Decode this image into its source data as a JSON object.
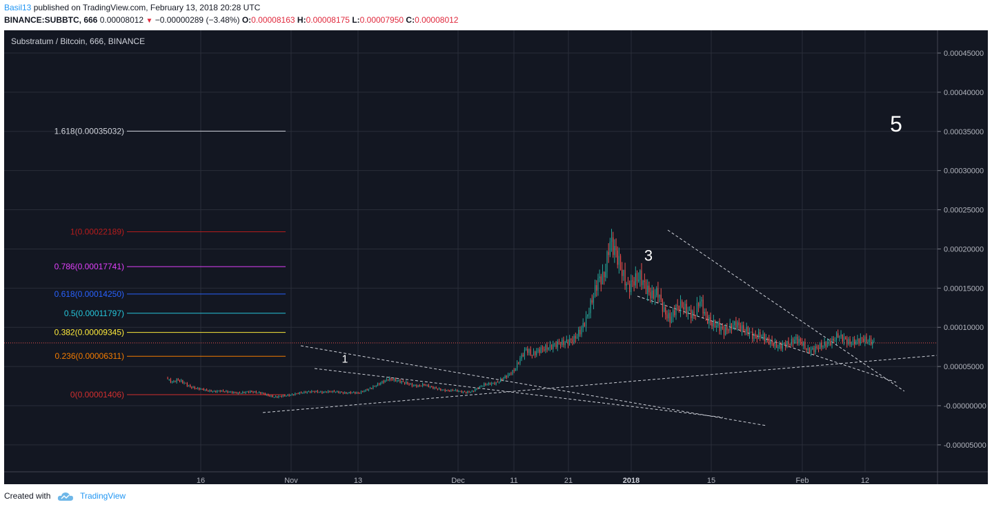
{
  "header": {
    "user": "Basil13",
    "published_text": "published on TradingView.com, February 13, 2018 20:28 UTC",
    "symbol": "BINANCE:SUBBTC, 666",
    "last": "0.00008012",
    "change": "−0.00000289 (−3.48%)",
    "o_label": "O:",
    "o_value": "0.00008163",
    "h_label": "H:",
    "h_value": "0.00008175",
    "l_label": "L:",
    "l_value": "0.00007950",
    "c_label": "C:",
    "c_value": "0.00008012"
  },
  "footer": {
    "created_with": "Created with",
    "brand": "TradingView"
  },
  "colors": {
    "background": "#131722",
    "grid": "#2a2e39",
    "up": "#26a69a",
    "down": "#ef5350",
    "text": "#b2b5be"
  },
  "chart_data": {
    "type": "candlestick",
    "title": "Substratum / Bitcoin, 666, BINANCE",
    "ylim": [
      -8e-05,
      0.00048
    ],
    "y_ticks": [
      {
        "value": 0.00045,
        "label": "0.00045000"
      },
      {
        "value": 0.0004,
        "label": "0.00040000"
      },
      {
        "value": 0.00035,
        "label": "0.00035000"
      },
      {
        "value": 0.0003,
        "label": "0.00030000"
      },
      {
        "value": 0.00025,
        "label": "0.00025000"
      },
      {
        "value": 0.0002,
        "label": "0.00020000"
      },
      {
        "value": 0.00015,
        "label": "0.00015000"
      },
      {
        "value": 0.0001,
        "label": "0.00010000"
      },
      {
        "value": 5e-05,
        "label": "0.00005000"
      },
      {
        "value": 0.0,
        "label": "-0.00000000"
      },
      {
        "value": -5e-05,
        "label": "-0.00005000"
      }
    ],
    "x_ticks": [
      {
        "label": "16",
        "bold": false
      },
      {
        "label": "Nov",
        "bold": false
      },
      {
        "label": "13",
        "bold": false
      },
      {
        "label": "Dec",
        "bold": false
      },
      {
        "label": "11",
        "bold": false
      },
      {
        "label": "21",
        "bold": false
      },
      {
        "label": "2018",
        "bold": true
      },
      {
        "label": "15",
        "bold": false
      },
      {
        "label": "Feb",
        "bold": false
      },
      {
        "label": "12",
        "bold": false
      }
    ],
    "current_price": 8.012e-05,
    "fib_levels": [
      {
        "label": "1.618(0.00035032)",
        "value": 0.00035032,
        "color": "#d1d4dc"
      },
      {
        "label": "1(0.00022189)",
        "value": 0.00022189,
        "color": "#b71c1c"
      },
      {
        "label": "0.786(0.00017741)",
        "value": 0.00017741,
        "color": "#e040fb"
      },
      {
        "label": "0.618(0.00014250)",
        "value": 0.0001425,
        "color": "#2962ff"
      },
      {
        "label": "0.5(0.00011797)",
        "value": 0.00011797,
        "color": "#26c6da"
      },
      {
        "label": "0.382(0.00009345)",
        "value": 9.345e-05,
        "color": "#ffeb3b"
      },
      {
        "label": "0.236(0.00006311)",
        "value": 6.311e-05,
        "color": "#f57c00"
      },
      {
        "label": "0(0.00001406)",
        "value": 1.406e-05,
        "color": "#d32f2f"
      }
    ],
    "wave_labels": [
      {
        "label": "1",
        "value": 5.5e-05
      },
      {
        "label": "3",
        "value": 0.000185
      },
      {
        "label": "5",
        "value": 0.00035
      }
    ],
    "price_path": [
      3.5e-05,
      3e-05,
      3.3e-05,
      2.9e-05,
      2.4e-05,
      2.2e-05,
      2.1e-05,
      1.9e-05,
      1.8e-05,
      1.9e-05,
      1.8e-05,
      1.7e-05,
      1.6e-05,
      1.7e-05,
      1.8e-05,
      1.7e-05,
      1.6e-05,
      1.3e-05,
      1.1e-05,
      1.2e-05,
      1.3e-05,
      1.4e-05,
      1.6e-05,
      1.7e-05,
      1.8e-05,
      1.8e-05,
      1.7e-05,
      1.8e-05,
      1.8e-05,
      1.7e-05,
      1.6e-05,
      1.7e-05,
      1.6e-05,
      1.9e-05,
      2.2e-05,
      2.6e-05,
      3e-05,
      3.4e-05,
      3.3e-05,
      3.1e-05,
      2.9e-05,
      2.6e-05,
      2.5e-05,
      2.7e-05,
      2.4e-05,
      2.2e-05,
      2e-05,
      1.9e-05,
      2e-05,
      1.8e-05,
      1.7e-05,
      1.8e-05,
      2.3e-05,
      2.7e-05,
      2.8e-05,
      2.9e-05,
      3.4e-05,
      3.9e-05,
      4.5e-05,
      6e-05,
      7.2e-05,
      6.5e-05,
      7e-05,
      7.3e-05,
      7.5e-05,
      7.8e-05,
      8e-05,
      8.2e-05,
      8.5e-05,
      9.5e-05,
      0.00011,
      0.000135,
      0.00016,
      0.000165,
      0.00021,
      0.000195,
      0.00017,
      0.00015,
      0.00016,
      0.000165,
      0.00015,
      0.00014,
      0.000145,
      0.00012,
      0.00011,
      0.000125,
      0.000128,
      0.00012,
      0.000115,
      0.000135,
      0.000112,
      0.000105,
      0.000102,
      9.5e-05,
      0.0001,
      0.000105,
      9.8e-05,
      9.5e-05,
      8.8e-05,
      9e-05,
      8.5e-05,
      8e-05,
      7.5e-05,
      7.8e-05,
      8e-05,
      8.5e-05,
      8e-05,
      7e-05,
      7.2e-05,
      7.6e-05,
      7.9e-05,
      8.2e-05,
      9e-05,
      8.5e-05,
      8e-05,
      8.2e-05,
      8.5e-05,
      8.3e-05,
      8e-05
    ]
  }
}
